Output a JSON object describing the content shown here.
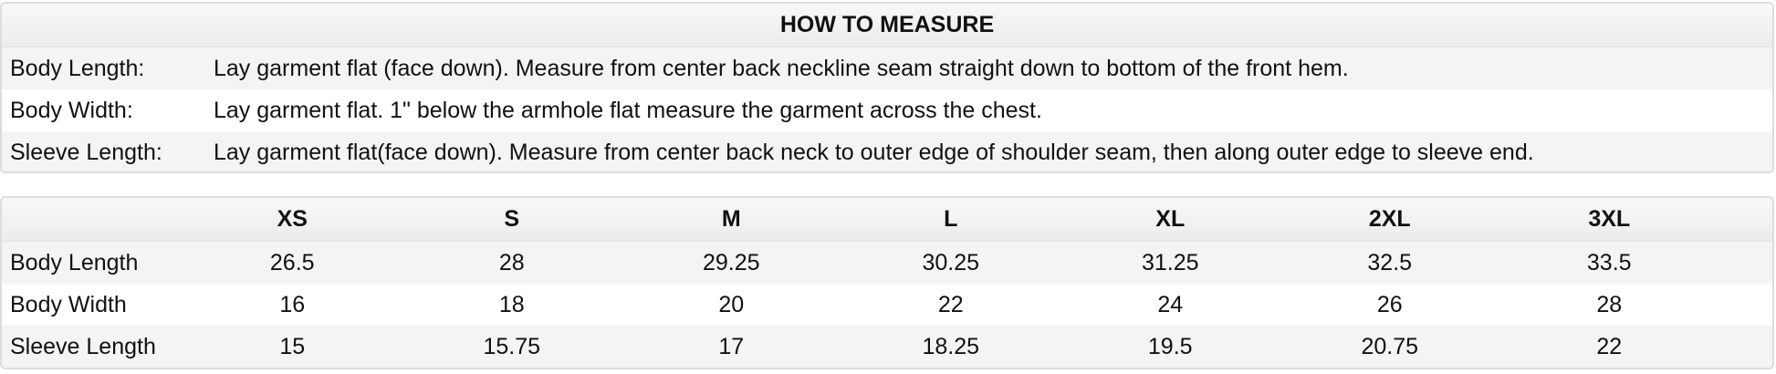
{
  "measure": {
    "title": "HOW TO MEASURE",
    "rows": [
      {
        "label": "Body Length:",
        "text": "Lay garment flat (face down). Measure from center back neckline seam straight down to bottom of the front hem."
      },
      {
        "label": "Body Width:",
        "text": "Lay garment flat. 1\" below the armhole flat measure the garment across the chest."
      },
      {
        "label": "Sleeve Length:",
        "text": "Lay garment flat(face down). Measure from center back neck to outer edge of shoulder seam, then along outer edge to sleeve end."
      }
    ]
  },
  "sizes": {
    "headers": [
      "XS",
      "S",
      "M",
      "L",
      "XL",
      "2XL",
      "3XL"
    ],
    "rows": [
      {
        "label": "Body Length",
        "values": [
          "26.5",
          "28",
          "29.25",
          "30.25",
          "31.25",
          "32.5",
          "33.5"
        ]
      },
      {
        "label": "Body Width",
        "values": [
          "16",
          "18",
          "20",
          "22",
          "24",
          "26",
          "28"
        ]
      },
      {
        "label": "Sleeve Length",
        "values": [
          "15",
          "15.75",
          "17",
          "18.25",
          "19.5",
          "20.75",
          "22"
        ]
      }
    ]
  }
}
